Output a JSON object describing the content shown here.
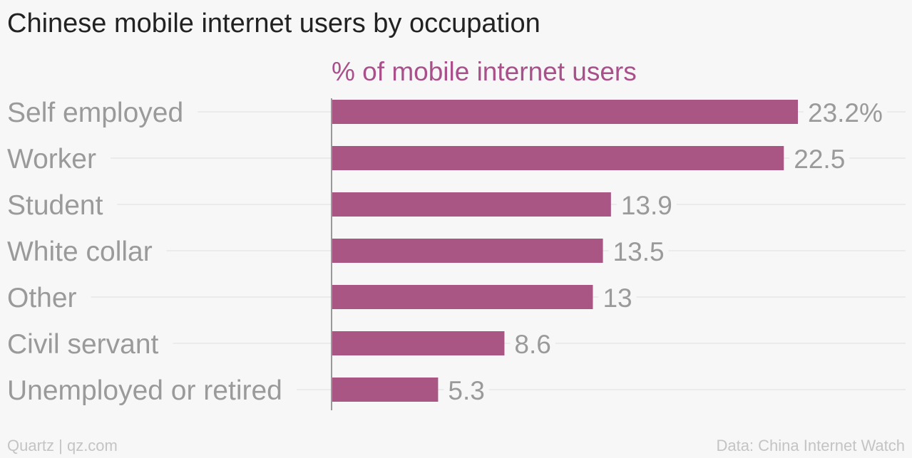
{
  "title": "Chinese mobile internet users by occupation",
  "footer": {
    "left": "Quartz | qz.com",
    "right": "Data: China Internet Watch"
  },
  "colors": {
    "bar": "#a95685",
    "subtitle": "#a9508a",
    "gridline": "#e7e7e7",
    "axis": "#999999",
    "label": "#9a9a9a"
  },
  "chart_data": {
    "type": "bar",
    "orientation": "horizontal",
    "subtitle": "% of mobile internet users",
    "categories": [
      "Self employed",
      "Worker",
      "Student",
      "White collar",
      "Other",
      "Civil servant",
      "Unemployed or retired"
    ],
    "values": [
      23.2,
      22.5,
      13.9,
      13.5,
      13,
      8.6,
      5.3
    ],
    "value_labels": [
      "23.2%",
      "22.5",
      "13.9",
      "13.5",
      "13",
      "8.6",
      "5.3"
    ],
    "xlim": [
      0,
      23.2
    ],
    "grid": true
  }
}
